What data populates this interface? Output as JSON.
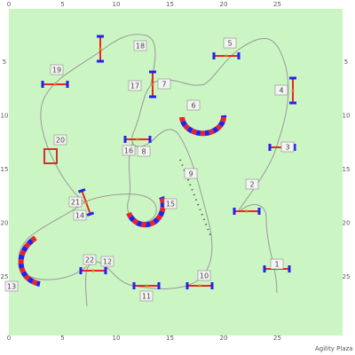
{
  "axis": {
    "top": [
      "0",
      "5",
      "10",
      "15",
      "20",
      "25"
    ],
    "bottom": [
      "0",
      "5",
      "10",
      "15",
      "20",
      "25"
    ],
    "left": [
      "5",
      "10",
      "15",
      "20",
      "25"
    ],
    "right": [
      "5",
      "10",
      "15",
      "20",
      "25"
    ]
  },
  "obstacles": [
    {
      "label": "1"
    },
    {
      "label": "2"
    },
    {
      "label": "3"
    },
    {
      "label": "4"
    },
    {
      "label": "5"
    },
    {
      "label": "6"
    },
    {
      "label": "7"
    },
    {
      "label": "8"
    },
    {
      "label": "9"
    },
    {
      "label": "10"
    },
    {
      "label": "11"
    },
    {
      "label": "12"
    },
    {
      "label": "13"
    },
    {
      "label": "14"
    },
    {
      "label": "15"
    },
    {
      "label": "16"
    },
    {
      "label": "17"
    },
    {
      "label": "18"
    },
    {
      "label": "19"
    },
    {
      "label": "20"
    },
    {
      "label": "21"
    },
    {
      "label": "22"
    }
  ],
  "footer": "Agility Plaza"
}
